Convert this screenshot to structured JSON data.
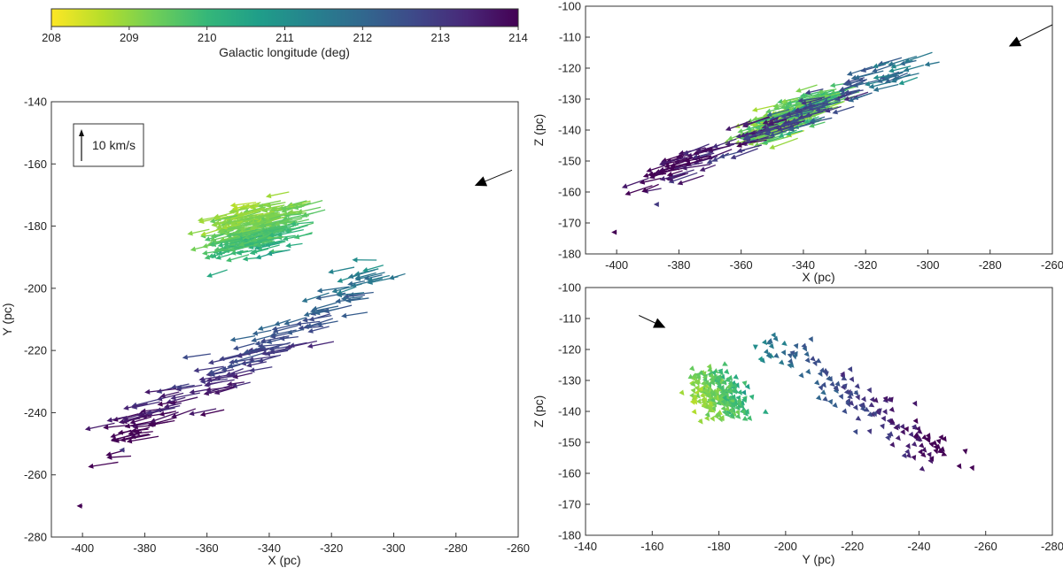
{
  "colorbar": {
    "label": "Galactic longitude (deg)",
    "min": 208,
    "max": 214,
    "ticks": [
      "208",
      "209",
      "210",
      "211",
      "212",
      "213",
      "214"
    ],
    "colormap": [
      "#fde725",
      "#b5de2b",
      "#6ece58",
      "#35b779",
      "#1f9e89",
      "#26828e",
      "#31688e",
      "#3e4989",
      "#482878",
      "#440154"
    ]
  },
  "chart_data": [
    {
      "type": "quiver",
      "id": "xy",
      "xlabel": "X (pc)",
      "ylabel": "Y (pc)",
      "xlim": [
        -410,
        -260
      ],
      "ylim": [
        -280,
        -140
      ],
      "xticks": [
        "-400",
        "-380",
        "-360",
        "-340",
        "-320",
        "-300",
        "-280",
        "-260"
      ],
      "yticks": [
        "-140",
        "-160",
        "-180",
        "-200",
        "-220",
        "-240",
        "-260",
        "-280"
      ],
      "legend": {
        "label": "10 km/s",
        "placement": "top-left"
      },
      "mean_motion_arrow": {
        "from": [
          -262,
          -162
        ],
        "to": [
          -274,
          -167
        ]
      }
    },
    {
      "type": "quiver",
      "id": "xz",
      "xlabel": "X (pc)",
      "ylabel": "Z (pc)",
      "xlim": [
        -410,
        -260
      ],
      "ylim": [
        -180,
        -100
      ],
      "xticks": [
        "-400",
        "-380",
        "-360",
        "-340",
        "-320",
        "-300",
        "-280",
        "-260"
      ],
      "yticks": [
        "-100",
        "-110",
        "-120",
        "-130",
        "-140",
        "-150",
        "-160",
        "-170",
        "-180"
      ],
      "mean_motion_arrow": {
        "from": [
          -260,
          -106
        ],
        "to": [
          -274,
          -113
        ]
      }
    },
    {
      "type": "quiver",
      "id": "yz",
      "xlabel": "Y (pc)",
      "ylabel": "Z (pc)",
      "xlim": [
        -140,
        -280
      ],
      "ylim": [
        -180,
        -100
      ],
      "xticks": [
        "-140",
        "-160",
        "-180",
        "-200",
        "-220",
        "-240",
        "-260",
        "-280"
      ],
      "yticks": [
        "-100",
        "-110",
        "-120",
        "-130",
        "-140",
        "-150",
        "-160",
        "-170",
        "-180"
      ],
      "mean_motion_arrow": {
        "from": [
          -156,
          -109
        ],
        "to": [
          -164,
          -113
        ]
      }
    }
  ]
}
